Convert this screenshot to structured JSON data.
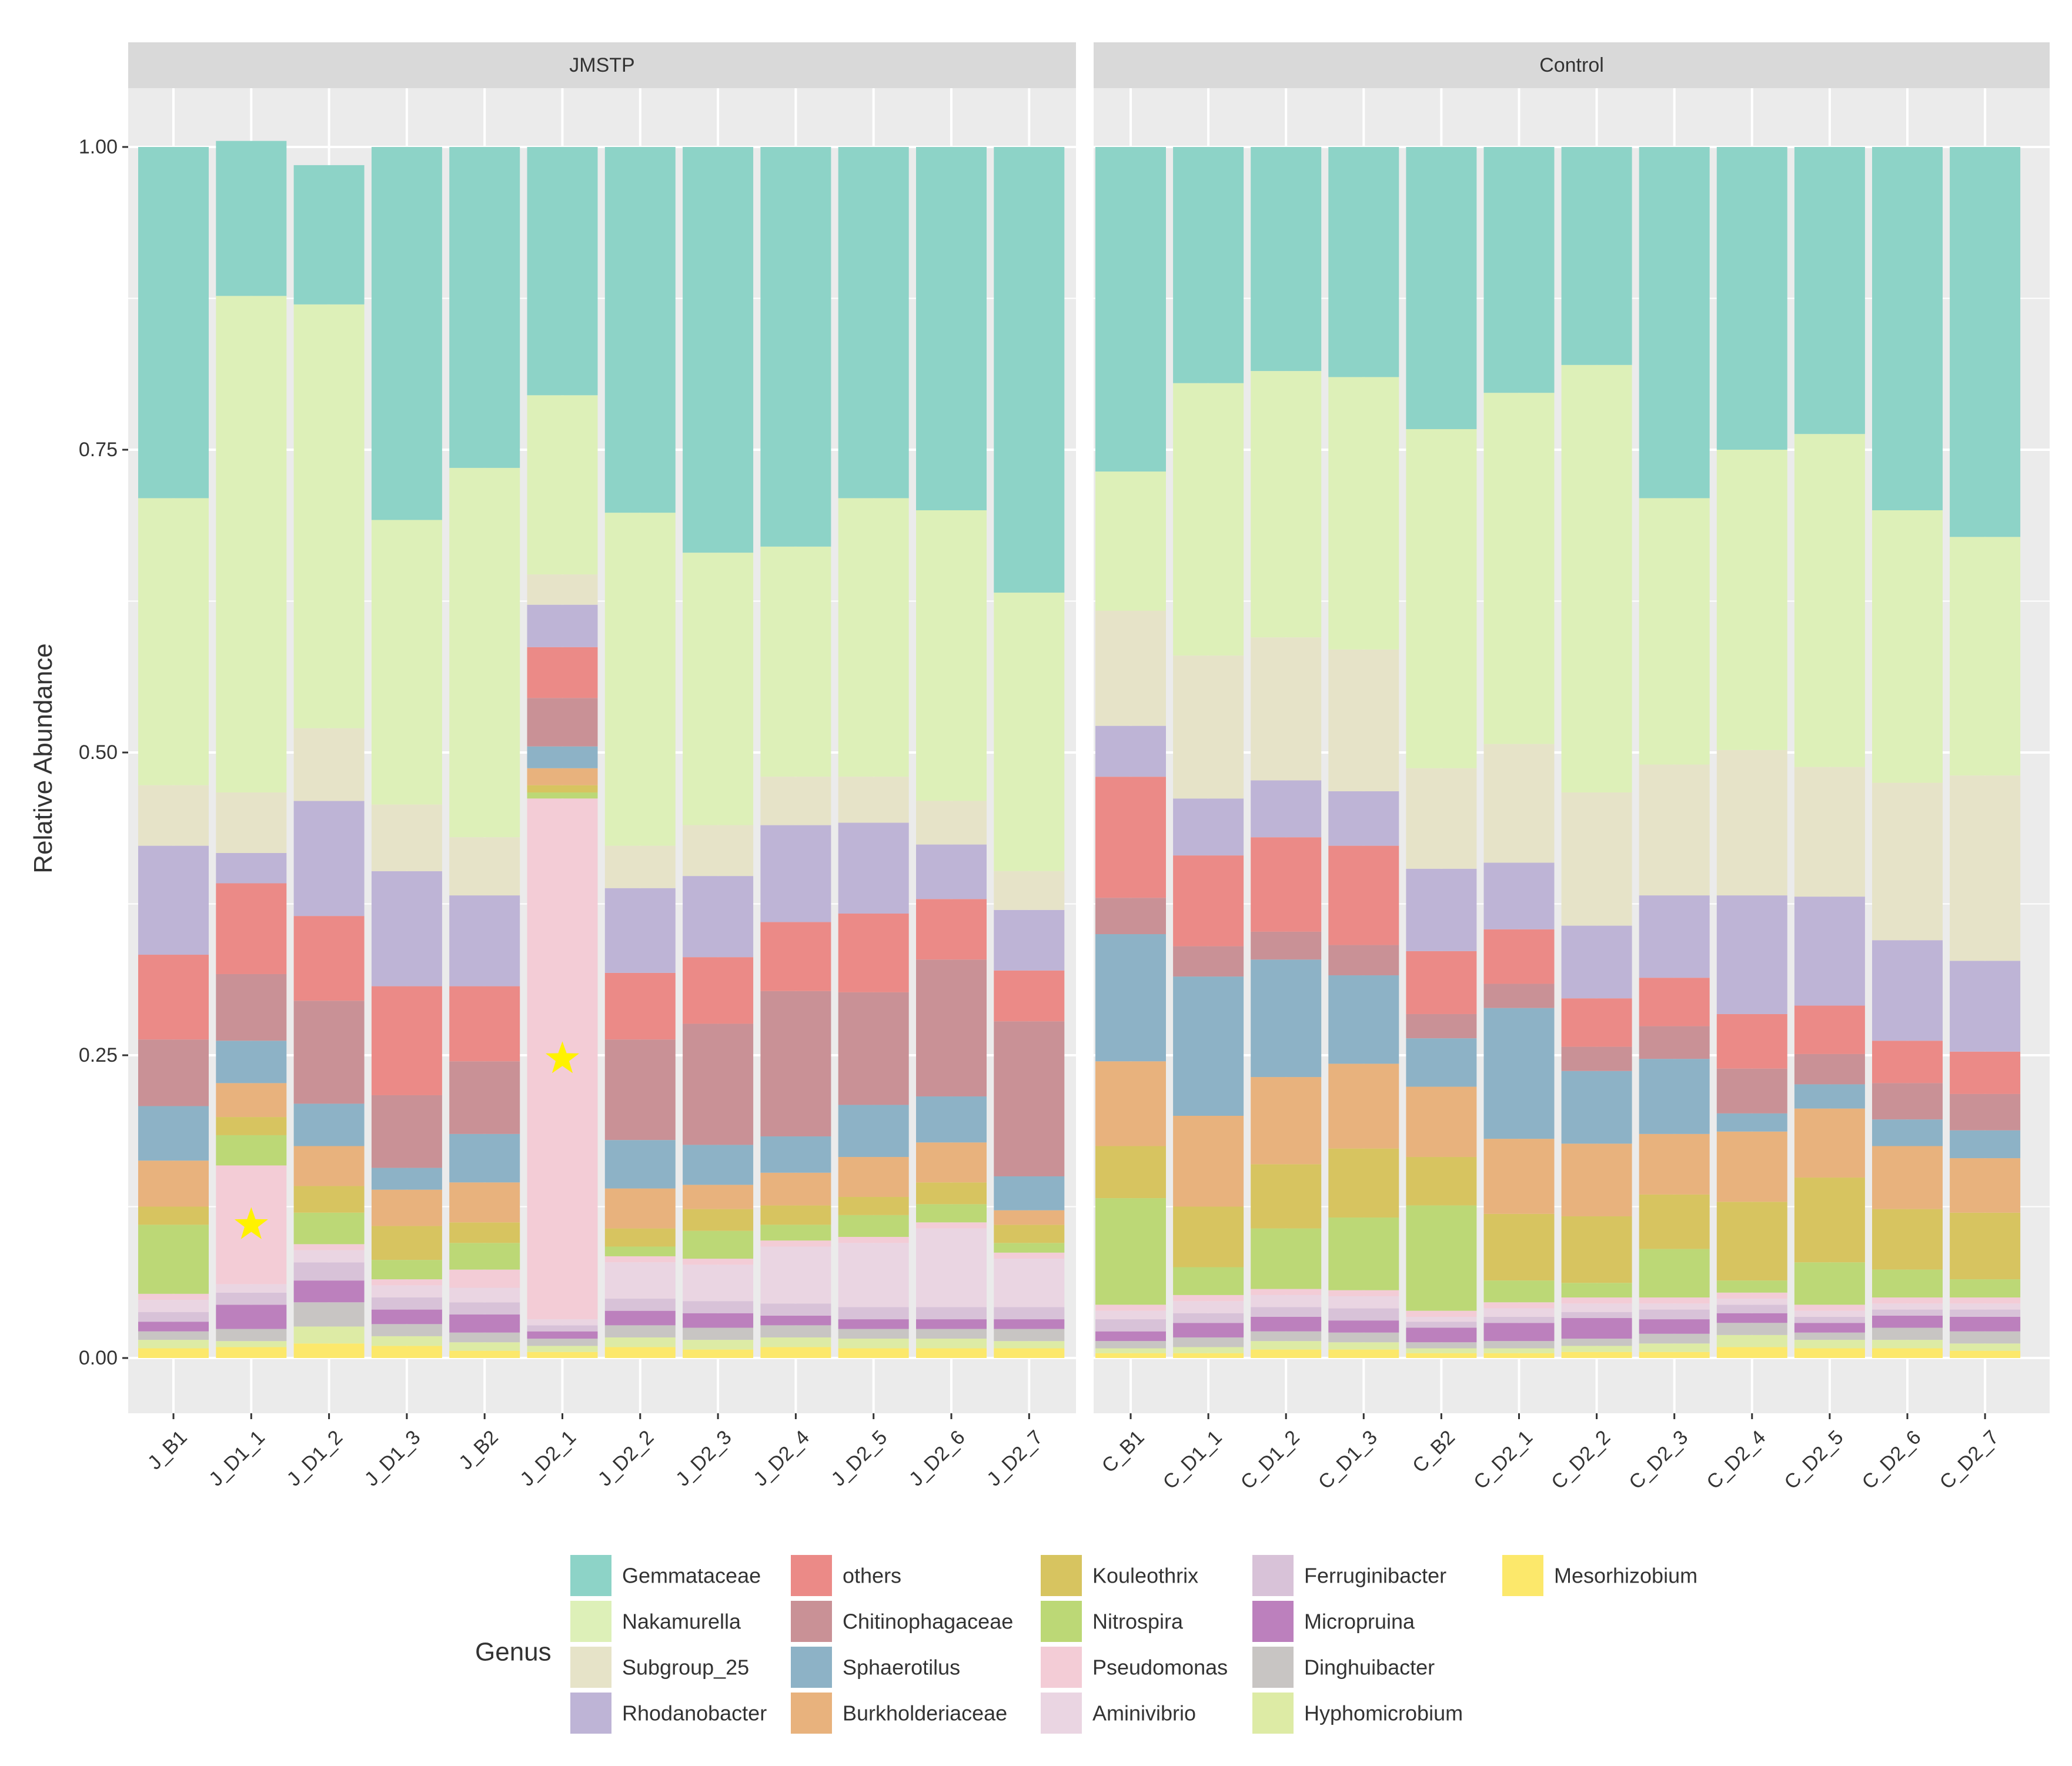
{
  "chart_data": {
    "type": "bar",
    "stacked": true,
    "ylabel": "Relative Abundance",
    "xlabel": "",
    "ylim": [
      0,
      1
    ],
    "yticks": [
      0,
      0.25,
      0.5,
      0.75,
      1
    ],
    "ytick_labels": [
      "0.00",
      "0.25",
      "0.50",
      "0.75",
      "1.00"
    ],
    "legend_title": "Genus",
    "legend_position": "bottom",
    "genera": [
      "Gemmataceae",
      "Nakamurella",
      "Subgroup_25",
      "Rhodanobacter",
      "others",
      "Chitinophagaceae",
      "Sphaerotilus",
      "Burkholderiaceae",
      "Kouleothrix",
      "Nitrospira",
      "Pseudomonas",
      "Aminivibrio",
      "Ferruginibacter",
      "Micropruina",
      "Dinghuibacter",
      "Hyphomicrobium",
      "Mesorhizobium"
    ],
    "colors": {
      "Gemmataceae": "#8DD3C7",
      "Nakamurella": "#DDF0B8",
      "Subgroup_25": "#E6E3C8",
      "Rhodanobacter": "#BEB4D6",
      "others": "#EB8A87",
      "Chitinophagaceae": "#C99196",
      "Sphaerotilus": "#8DB2C6",
      "Burkholderiaceae": "#E8B27D",
      "Kouleothrix": "#D7C460",
      "Nitrospira": "#BCD876",
      "Pseudomonas": "#F3CCD6",
      "Aminivibrio": "#EAD5E2",
      "Ferruginibacter": "#D8C2D8",
      "Micropruina": "#BC80BD",
      "Dinghuibacter": "#C8C5C3",
      "Hyphomicrobium": "#DDEBA5",
      "Mesorhizobium": "#FCE86B"
    },
    "highlight_marker": "star",
    "highlight_color": "#FFF200",
    "panels": [
      {
        "title": "JMSTP",
        "samples": [
          {
            "name": "J_B1",
            "values": [
              0.29,
              0.237,
              0.05,
              0.09,
              0.07,
              0.055,
              0.045,
              0.038,
              0.015,
              0.057,
              0.005,
              0.01,
              0.008,
              0.008,
              0.007,
              0.007,
              0.008
            ],
            "star": false
          },
          {
            "name": "J_D1_1",
            "values": [
              0.128,
              0.41,
              0.05,
              0.025,
              0.075,
              0.055,
              0.035,
              0.028,
              0.015,
              0.025,
              0.098,
              0.007,
              0.01,
              0.02,
              0.01,
              0.005,
              0.009
            ],
            "star": true
          },
          {
            "name": "J_D1_2",
            "values": [
              0.115,
              0.35,
              0.06,
              0.095,
              0.07,
              0.085,
              0.035,
              0.033,
              0.022,
              0.026,
              0.005,
              0.01,
              0.015,
              0.018,
              0.02,
              0.014,
              0.012
            ],
            "star": false
          },
          {
            "name": "J_D1_3",
            "values": [
              0.308,
              0.235,
              0.055,
              0.095,
              0.09,
              0.06,
              0.018,
              0.03,
              0.028,
              0.016,
              0.005,
              0.01,
              0.01,
              0.012,
              0.01,
              0.008,
              0.01
            ],
            "star": false
          },
          {
            "name": "J_B2",
            "values": [
              0.265,
              0.305,
              0.048,
              0.075,
              0.062,
              0.06,
              0.04,
              0.033,
              0.017,
              0.022,
              0.015,
              0.012,
              0.01,
              0.015,
              0.008,
              0.007,
              0.006
            ],
            "star": false
          },
          {
            "name": "J_D2_1",
            "values": [
              0.205,
              0.148,
              0.025,
              0.035,
              0.042,
              0.04,
              0.018,
              0.014,
              0.006,
              0.005,
              0.43,
              0.005,
              0.005,
              0.006,
              0.006,
              0.005,
              0.005
            ],
            "star": true
          },
          {
            "name": "J_D2_2",
            "values": [
              0.302,
              0.275,
              0.035,
              0.07,
              0.055,
              0.083,
              0.04,
              0.033,
              0.015,
              0.008,
              0.005,
              0.03,
              0.01,
              0.012,
              0.01,
              0.008,
              0.009
            ],
            "star": false
          },
          {
            "name": "J_D2_3",
            "values": [
              0.335,
              0.225,
              0.042,
              0.067,
              0.055,
              0.1,
              0.033,
              0.02,
              0.018,
              0.023,
              0.005,
              0.03,
              0.01,
              0.012,
              0.01,
              0.008,
              0.007
            ],
            "star": false
          },
          {
            "name": "J_D2_4",
            "values": [
              0.33,
              0.19,
              0.04,
              0.08,
              0.057,
              0.12,
              0.03,
              0.027,
              0.016,
              0.013,
              0.005,
              0.047,
              0.01,
              0.008,
              0.01,
              0.008,
              0.009
            ],
            "star": false
          },
          {
            "name": "J_D2_5",
            "values": [
              0.29,
              0.23,
              0.038,
              0.075,
              0.065,
              0.093,
              0.043,
              0.033,
              0.015,
              0.018,
              0.005,
              0.053,
              0.01,
              0.008,
              0.008,
              0.008,
              0.008
            ],
            "star": false
          },
          {
            "name": "J_D2_6",
            "values": [
              0.3,
              0.24,
              0.036,
              0.045,
              0.05,
              0.113,
              0.038,
              0.033,
              0.018,
              0.015,
              0.005,
              0.065,
              0.01,
              0.008,
              0.008,
              0.008,
              0.008
            ],
            "star": false
          },
          {
            "name": "J_D2_7",
            "values": [
              0.368,
              0.23,
              0.032,
              0.05,
              0.042,
              0.128,
              0.028,
              0.012,
              0.015,
              0.008,
              0.005,
              0.04,
              0.01,
              0.008,
              0.01,
              0.006,
              0.008
            ],
            "star": false
          }
        ]
      },
      {
        "title": "Control",
        "samples": [
          {
            "name": "C_B1",
            "values": [
              0.268,
              0.115,
              0.095,
              0.042,
              0.1,
              0.03,
              0.105,
              0.07,
              0.043,
              0.088,
              0.005,
              0.007,
              0.01,
              0.008,
              0.006,
              0.004,
              0.004
            ],
            "star": false
          },
          {
            "name": "C_D1_1",
            "values": [
              0.195,
              0.225,
              0.118,
              0.047,
              0.075,
              0.025,
              0.115,
              0.075,
              0.05,
              0.023,
              0.005,
              0.01,
              0.008,
              0.012,
              0.008,
              0.005,
              0.004
            ],
            "star": false
          },
          {
            "name": "C_D1_2",
            "values": [
              0.185,
              0.22,
              0.118,
              0.047,
              0.078,
              0.023,
              0.097,
              0.072,
              0.053,
              0.05,
              0.005,
              0.01,
              0.008,
              0.012,
              0.008,
              0.007,
              0.007
            ],
            "star": false
          },
          {
            "name": "C_D1_3",
            "values": [
              0.19,
              0.225,
              0.117,
              0.045,
              0.082,
              0.025,
              0.073,
              0.07,
              0.057,
              0.06,
              0.005,
              0.01,
              0.01,
              0.01,
              0.008,
              0.006,
              0.007
            ],
            "star": false
          },
          {
            "name": "C_B2",
            "values": [
              0.233,
              0.28,
              0.083,
              0.068,
              0.052,
              0.02,
              0.04,
              0.058,
              0.04,
              0.087,
              0.005,
              0.004,
              0.005,
              0.012,
              0.005,
              0.004,
              0.004
            ],
            "star": false
          },
          {
            "name": "C_D2_1",
            "values": [
              0.203,
              0.29,
              0.098,
              0.055,
              0.045,
              0.02,
              0.108,
              0.062,
              0.055,
              0.018,
              0.005,
              0.007,
              0.005,
              0.015,
              0.006,
              0.004,
              0.004
            ],
            "star": false
          },
          {
            "name": "C_D2_2",
            "values": [
              0.18,
              0.353,
              0.11,
              0.06,
              0.04,
              0.02,
              0.06,
              0.06,
              0.055,
              0.012,
              0.005,
              0.007,
              0.005,
              0.017,
              0.006,
              0.005,
              0.005
            ],
            "star": false
          },
          {
            "name": "C_D2_3",
            "values": [
              0.29,
              0.22,
              0.108,
              0.068,
              0.04,
              0.027,
              0.062,
              0.05,
              0.045,
              0.04,
              0.005,
              0.005,
              0.008,
              0.012,
              0.008,
              0.007,
              0.005
            ],
            "star": false
          },
          {
            "name": "C_D2_4",
            "values": [
              0.25,
              0.248,
              0.12,
              0.098,
              0.045,
              0.037,
              0.015,
              0.058,
              0.065,
              0.01,
              0.005,
              0.005,
              0.007,
              0.008,
              0.01,
              0.01,
              0.009
            ],
            "star": false
          },
          {
            "name": "C_D2_5",
            "values": [
              0.237,
              0.275,
              0.107,
              0.09,
              0.04,
              0.025,
              0.02,
              0.057,
              0.07,
              0.035,
              0.005,
              0.005,
              0.005,
              0.008,
              0.006,
              0.007,
              0.008
            ],
            "star": false
          },
          {
            "name": "C_D2_6",
            "values": [
              0.3,
              0.225,
              0.13,
              0.083,
              0.035,
              0.03,
              0.022,
              0.052,
              0.05,
              0.023,
              0.005,
              0.005,
              0.005,
              0.01,
              0.01,
              0.007,
              0.008
            ],
            "star": false
          },
          {
            "name": "C_D2_7",
            "values": [
              0.322,
              0.197,
              0.153,
              0.075,
              0.035,
              0.03,
              0.023,
              0.045,
              0.055,
              0.015,
              0.005,
              0.005,
              0.006,
              0.012,
              0.01,
              0.006,
              0.006
            ],
            "star": false
          }
        ]
      }
    ]
  }
}
